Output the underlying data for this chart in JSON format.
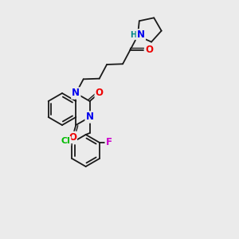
{
  "bg_color": "#ebebeb",
  "bond_color": "#1a1a1a",
  "atom_colors": {
    "N": "#0000ee",
    "O": "#ee0000",
    "Cl": "#00bb00",
    "F": "#cc00cc",
    "HN": "#008888"
  },
  "figsize": [
    3.0,
    3.0
  ],
  "dpi": 100
}
